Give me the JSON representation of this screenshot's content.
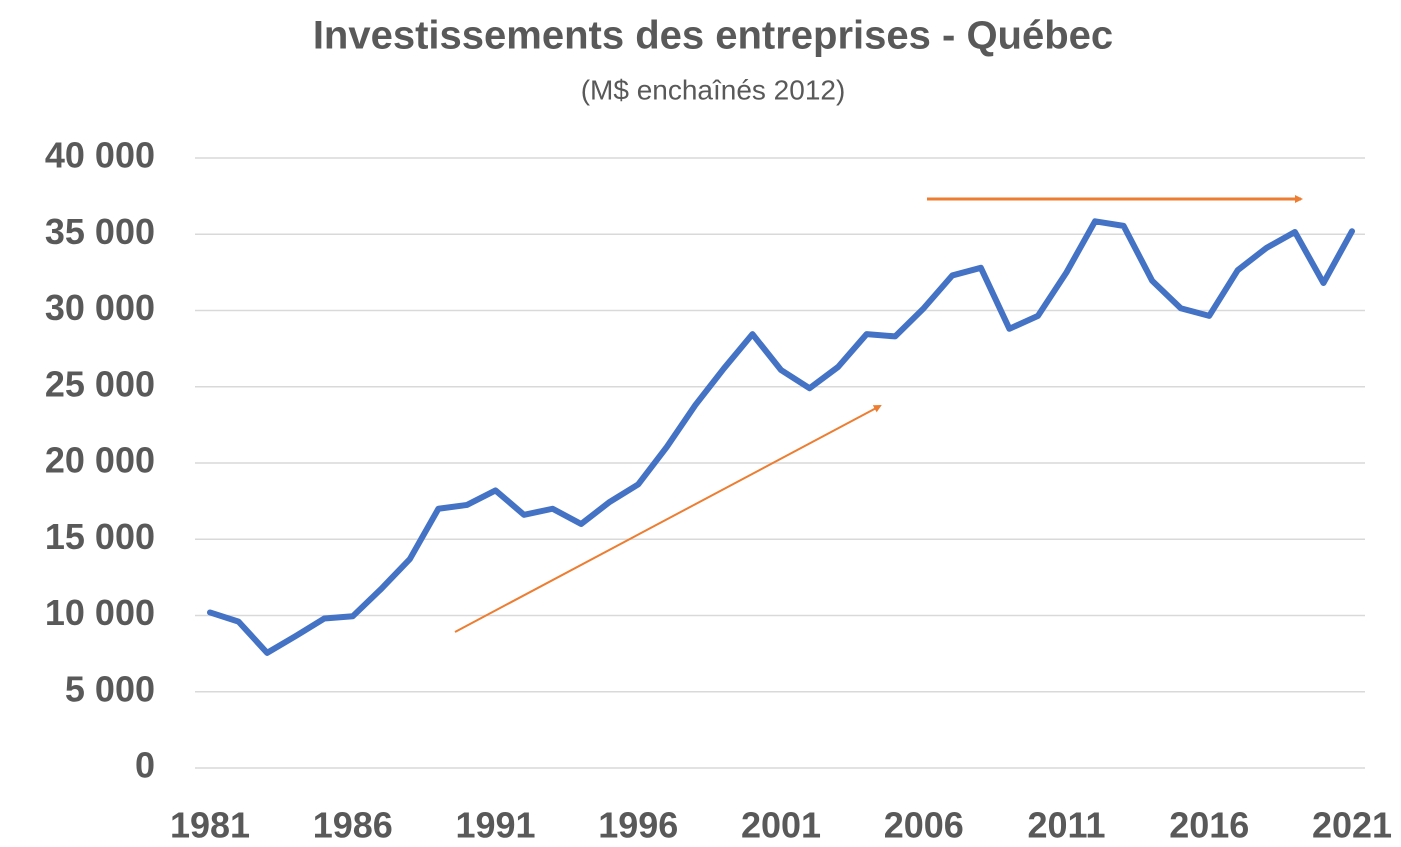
{
  "chart_data": {
    "type": "line",
    "title": "Investissements des entreprises - Québec",
    "subtitle": "(M$ enchaînés 2012)",
    "x": [
      1981,
      1982,
      1983,
      1984,
      1985,
      1986,
      1987,
      1988,
      1989,
      1990,
      1991,
      1992,
      1993,
      1994,
      1995,
      1996,
      1997,
      1998,
      1999,
      2000,
      2001,
      2002,
      2003,
      2004,
      2005,
      2006,
      2007,
      2008,
      2009,
      2010,
      2011,
      2012,
      2013,
      2014,
      2015,
      2016,
      2017,
      2018,
      2019,
      2020,
      2021
    ],
    "series": [
      {
        "color": "#4472c4",
        "values": [
          10200,
          9600,
          7550,
          8650,
          9800,
          9950,
          11750,
          13700,
          17000,
          17250,
          18200,
          16600,
          17000,
          16000,
          17450,
          18600,
          21050,
          23800,
          26200,
          28450,
          26100,
          24900,
          26300,
          28450,
          28300,
          30150,
          32300,
          32800,
          28800,
          29650,
          32500,
          35850,
          35550,
          31950,
          30150,
          29650,
          32650,
          34100,
          35150,
          31800,
          35200
        ]
      }
    ],
    "xlim": [
      1981,
      2021
    ],
    "xticks": [
      1981,
      1986,
      1991,
      1996,
      2001,
      2006,
      2011,
      2016,
      2021
    ],
    "ylim": [
      0,
      40000
    ],
    "yticks": [
      0,
      {
        "value": 5000,
        "label": "5 000"
      },
      {
        "value": 10000,
        "label": "10 000"
      },
      {
        "value": 15000,
        "label": "15 000"
      },
      {
        "value": 20000,
        "label": "20 000"
      },
      {
        "value": 25000,
        "label": "25 000"
      },
      {
        "value": 30000,
        "label": "30 000"
      },
      {
        "value": 35000,
        "label": "35 000"
      },
      {
        "value": 40000,
        "label": "40 000"
      }
    ],
    "grid": true
  }
}
